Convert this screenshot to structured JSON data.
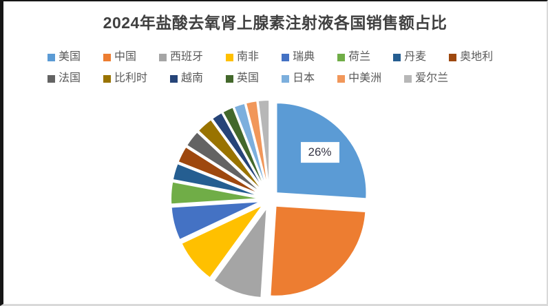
{
  "chart_data": {
    "type": "pie",
    "title": "2024年盐酸去氧肾上腺素注射液各国销售额占比",
    "categories": [
      "美国",
      "中国",
      "西班牙",
      "南非",
      "瑞典",
      "荷兰",
      "丹麦",
      "奥地利",
      "法国",
      "比利时",
      "越南",
      "英国",
      "日本",
      "中美洲",
      "爱尔兰"
    ],
    "values": [
      26,
      25,
      9,
      8,
      6,
      4,
      3,
      3,
      3,
      3,
      2,
      2,
      2,
      2,
      2
    ],
    "unit": "percent",
    "colors": [
      "#5B9BD5",
      "#ED7D31",
      "#A5A5A5",
      "#FFC000",
      "#4472C4",
      "#70AD47",
      "#255E91",
      "#9E480E",
      "#636363",
      "#997300",
      "#264478",
      "#43682B",
      "#7CAFDD",
      "#F1975A",
      "#B7B7B7"
    ],
    "start_angle": 0,
    "direction": "clockwise",
    "exploded": true,
    "legend_position": "top",
    "legend_rows": [
      8,
      7
    ],
    "data_labels": [
      {
        "index": 0,
        "text": "26%"
      }
    ]
  }
}
